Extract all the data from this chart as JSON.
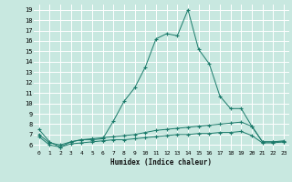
{
  "xlabel": "Humidex (Indice chaleur)",
  "bg_color": "#c8e8e0",
  "grid_color": "#ffffff",
  "line_color": "#1a7a6a",
  "x_ticks": [
    0,
    1,
    2,
    3,
    4,
    5,
    6,
    7,
    8,
    9,
    10,
    11,
    12,
    13,
    14,
    15,
    16,
    17,
    18,
    19,
    20,
    21,
    22,
    23
  ],
  "ylim": [
    5.5,
    19.5
  ],
  "yticks": [
    6,
    7,
    8,
    9,
    10,
    11,
    12,
    13,
    14,
    15,
    16,
    17,
    18,
    19
  ],
  "line1_y": [
    7.5,
    6.3,
    5.8,
    6.3,
    6.5,
    6.5,
    6.6,
    8.3,
    10.2,
    11.5,
    13.5,
    16.2,
    16.7,
    16.5,
    19.0,
    15.2,
    13.8,
    10.7,
    9.5,
    9.5,
    7.8,
    6.3,
    6.3,
    6.3
  ],
  "line2_y": [
    7.0,
    6.2,
    6.0,
    6.3,
    6.5,
    6.6,
    6.7,
    6.8,
    6.9,
    7.0,
    7.2,
    7.4,
    7.5,
    7.6,
    7.7,
    7.8,
    7.9,
    8.0,
    8.1,
    8.2,
    7.8,
    6.3,
    6.3,
    6.4
  ],
  "line3_y": [
    6.8,
    6.0,
    5.8,
    6.1,
    6.2,
    6.3,
    6.4,
    6.5,
    6.5,
    6.6,
    6.7,
    6.8,
    6.9,
    7.0,
    7.0,
    7.1,
    7.1,
    7.2,
    7.2,
    7.3,
    6.9,
    6.2,
    6.2,
    6.3
  ]
}
